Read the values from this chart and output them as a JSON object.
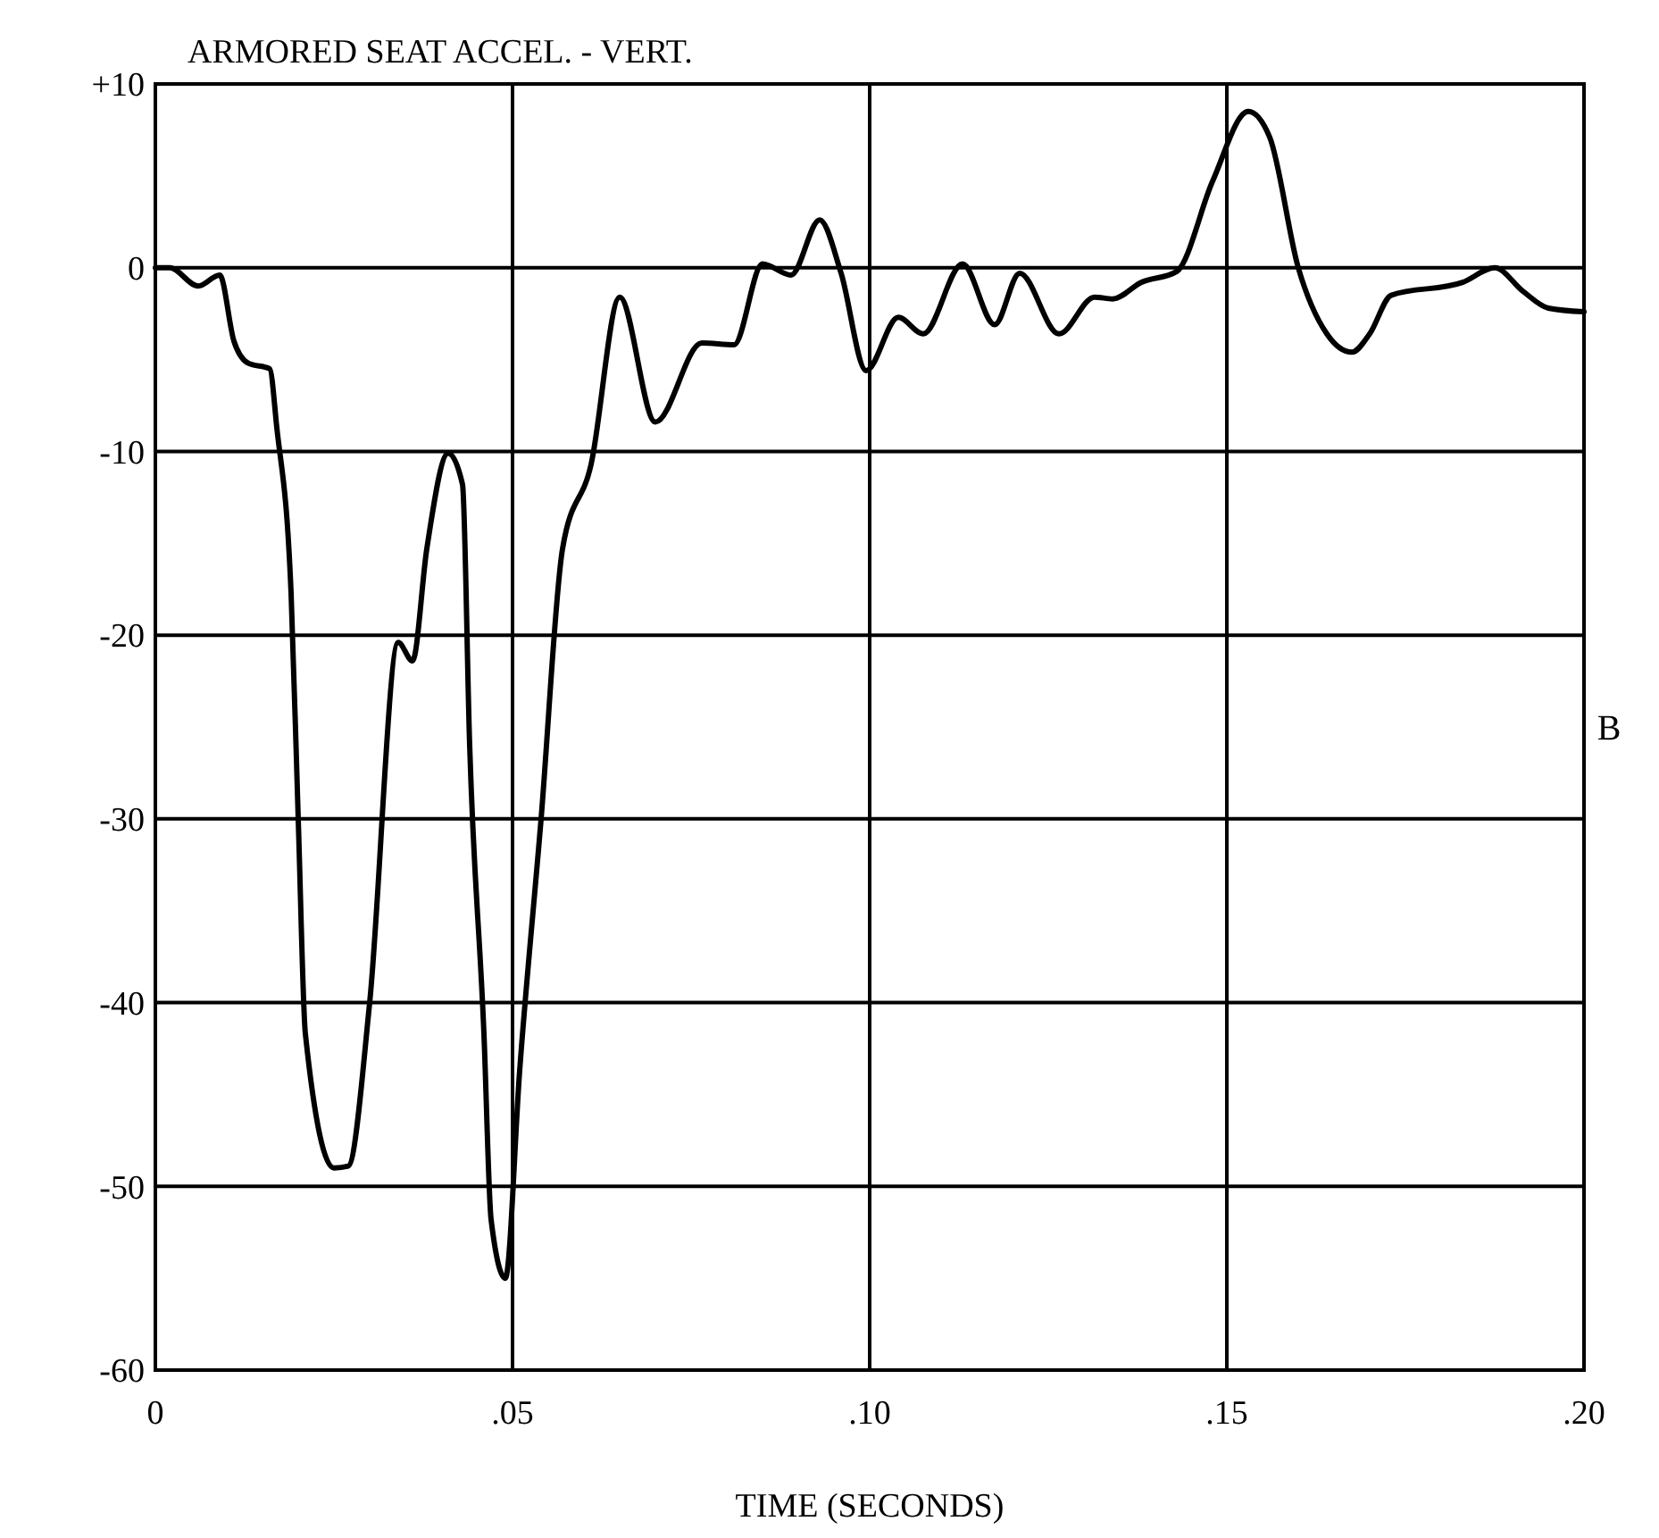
{
  "chart_data": {
    "type": "line",
    "title": "ARMORED SEAT ACCEL. - VERT.",
    "xlabel": "TIME (SECONDS)",
    "annotations": [
      "B"
    ],
    "xlim": [
      0,
      0.2
    ],
    "xticks": [
      {
        "value": 0,
        "label": "0"
      },
      {
        "value": 0.05,
        "label": ".05"
      },
      {
        "value": 0.1,
        "label": ".10"
      },
      {
        "value": 0.15,
        "label": ".15"
      },
      {
        "value": 0.2,
        "label": ".20"
      }
    ],
    "ylim": [
      -60,
      10
    ],
    "yticks": [
      {
        "value": 10,
        "label": "+10"
      },
      0,
      -10,
      -20,
      -30,
      -40,
      -50,
      -60
    ],
    "grid": true,
    "series": [
      {
        "color": "#000000",
        "x": [
          0,
          0.002,
          0.006,
          0.009,
          0.011,
          0.013,
          0.016,
          0.017,
          0.019,
          0.02,
          0.021,
          0.025,
          0.027,
          0.03,
          0.034,
          0.036,
          0.038,
          0.041,
          0.043,
          0.044,
          0.046,
          0.047,
          0.049,
          0.051,
          0.054,
          0.057,
          0.061,
          0.065,
          0.07,
          0.0765,
          0.081,
          0.085,
          0.089,
          0.093,
          0.096,
          0.0995,
          0.104,
          0.1075,
          0.113,
          0.1175,
          0.121,
          0.1265,
          0.1315,
          0.134,
          0.138,
          0.143,
          0.148,
          0.153,
          0.156,
          0.16,
          0.164,
          0.1675,
          0.17,
          0.173,
          0.183,
          0.1875,
          0.1915,
          0.195,
          0.2
        ],
        "values": [
          0,
          0,
          -1,
          -0.4,
          -4,
          -5.2,
          -5.5,
          -8.7,
          -17.7,
          -30,
          -41.7,
          -49,
          -48.9,
          -40,
          -20.4,
          -21.4,
          -15.3,
          -10.1,
          -11.8,
          -26,
          -41.7,
          -51.8,
          -55,
          -43.7,
          -30,
          -15.3,
          -10.7,
          -1.6,
          -8.4,
          -4.1,
          -4.2,
          0.2,
          -0.4,
          2.6,
          -0.3,
          -5.6,
          -2.7,
          -3.6,
          0.2,
          -3.1,
          -0.3,
          -3.6,
          -1.6,
          -1.7,
          -0.8,
          -0.2,
          4.7,
          8.5,
          7.1,
          0,
          -3.6,
          -4.6,
          -3.6,
          -1.5,
          -0.8,
          0,
          -1.3,
          -2.2,
          -2.4
        ]
      }
    ]
  }
}
